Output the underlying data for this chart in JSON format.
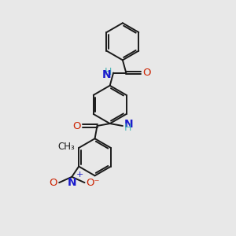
{
  "bg_color": "#e8e8e8",
  "bond_color": "#1a1a1a",
  "text_color_black": "#1a1a1a",
  "text_color_blue": "#1a1acc",
  "text_color_teal": "#4eb8b8",
  "text_color_red": "#cc2200",
  "line_width": 1.4,
  "figsize": [
    3.0,
    3.0
  ],
  "dpi": 100,
  "xlim": [
    0,
    10
  ],
  "ylim": [
    0,
    10
  ]
}
